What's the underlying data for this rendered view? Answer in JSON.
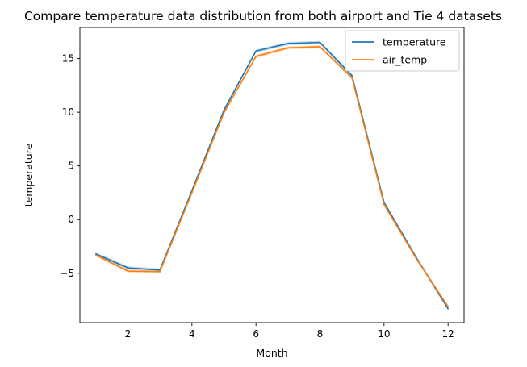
{
  "chart_data": {
    "type": "line",
    "title": "Compare temperature data distribution from both airport and Tie 4 datasets",
    "xlabel": "Month",
    "ylabel": "temperature",
    "xlim": [
      0.5,
      12.5
    ],
    "ylim": [
      -9.6,
      17.9
    ],
    "x_ticks": [
      2,
      4,
      6,
      8,
      10,
      12
    ],
    "y_ticks": [
      -5,
      0,
      5,
      10,
      15
    ],
    "grid": false,
    "legend_position": "top-right",
    "x": [
      1,
      2,
      3,
      4,
      5,
      6,
      7,
      8,
      9,
      10,
      11,
      12
    ],
    "series": [
      {
        "name": "temperature",
        "color": "#1f77b4",
        "values": [
          -3.2,
          -4.5,
          -4.7,
          2.7,
          10.2,
          15.7,
          16.4,
          16.5,
          13.4,
          1.6,
          -3.5,
          -8.3
        ],
        "band": 0.15
      },
      {
        "name": "air_temp",
        "color": "#ff7f0e",
        "values": [
          -3.3,
          -4.8,
          -4.85,
          2.5,
          9.95,
          15.2,
          16.0,
          16.1,
          13.2,
          1.4,
          -3.6,
          -8.1
        ],
        "band": 0.15
      }
    ]
  }
}
